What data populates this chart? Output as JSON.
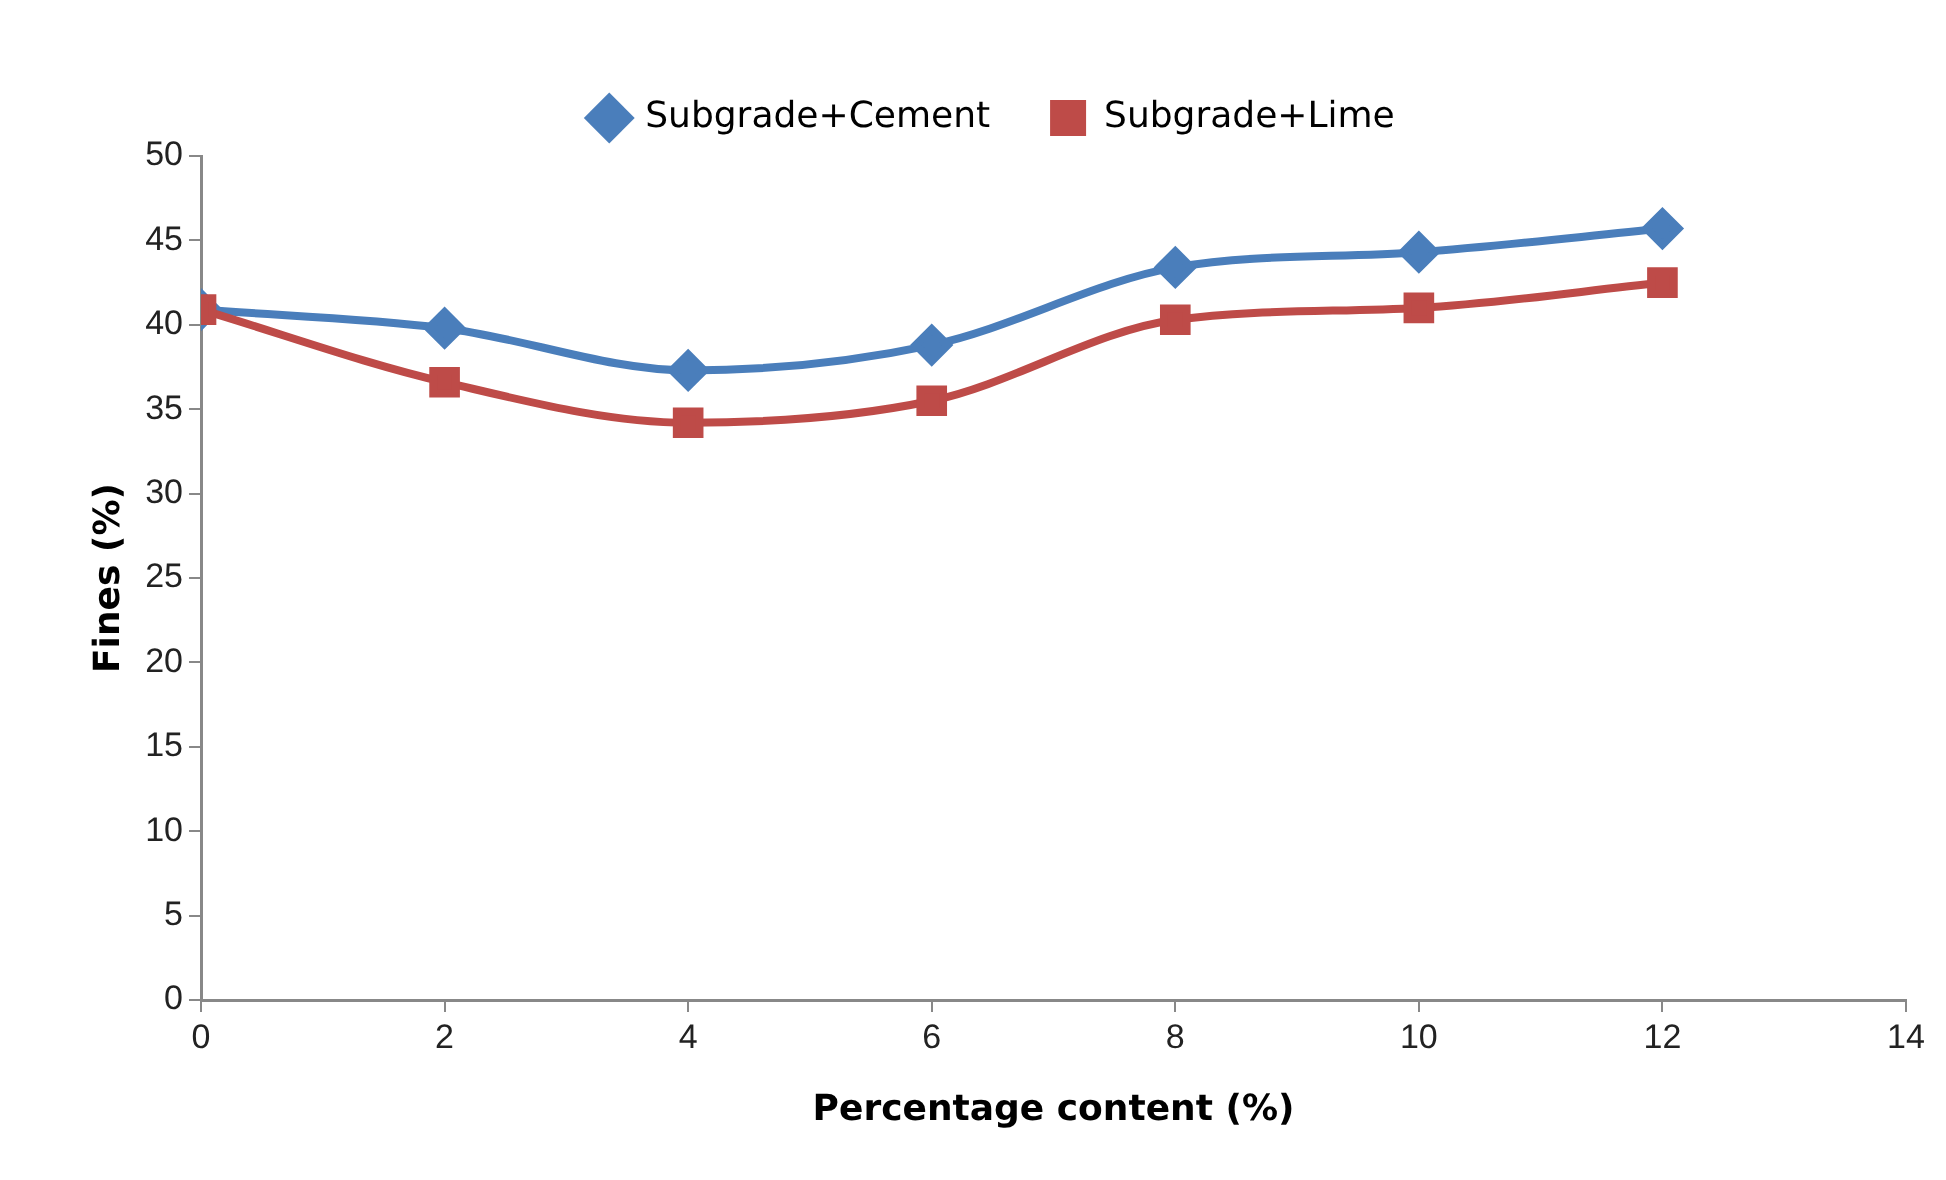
{
  "chart_data": {
    "type": "line",
    "xlabel": "Percentage content (%)",
    "ylabel": "Fines (%)",
    "x": [
      0,
      2,
      4,
      6,
      8,
      10,
      12
    ],
    "series": [
      {
        "name": "Subgrade+Cement",
        "color": "#4a7ebb",
        "marker": "diamond",
        "values": [
          40.9,
          39.8,
          37.3,
          38.8,
          43.4,
          44.3,
          45.7
        ]
      },
      {
        "name": "Subgrade+Lime",
        "color": "#be4b48",
        "marker": "square",
        "values": [
          40.9,
          36.6,
          34.2,
          35.5,
          40.3,
          41.0,
          42.5
        ]
      }
    ],
    "xlim": [
      0,
      14
    ],
    "xticks": [
      0,
      2,
      4,
      6,
      8,
      10,
      12,
      14
    ],
    "ylim": [
      0,
      50
    ],
    "yticks": [
      0,
      5,
      10,
      15,
      20,
      25,
      30,
      35,
      40,
      45,
      50
    ],
    "grid": false,
    "legend": "top",
    "line_style": "solid"
  }
}
